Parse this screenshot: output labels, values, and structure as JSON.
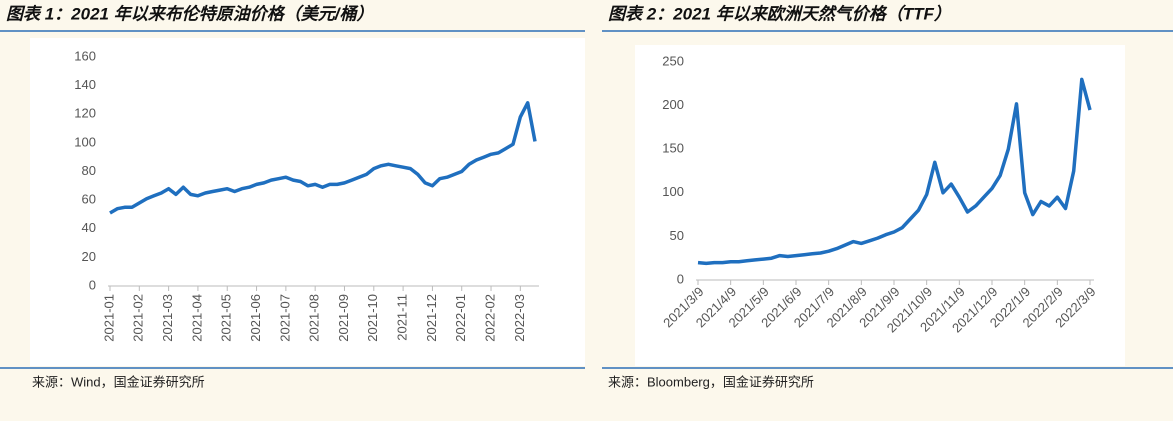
{
  "chart_data": [
    {
      "type": "line",
      "title": "图表 1：2021 年以来布伦特原油价格（美元/桶）",
      "source": "来源：Wind，国金证券研究所",
      "categories": [
        "2021-01",
        null,
        null,
        null,
        "2021-02",
        null,
        null,
        null,
        "2021-03",
        null,
        null,
        null,
        "2021-04",
        null,
        null,
        null,
        "2021-05",
        null,
        null,
        null,
        "2021-06",
        null,
        null,
        null,
        "2021-07",
        null,
        null,
        null,
        "2021-08",
        null,
        null,
        null,
        "2021-09",
        null,
        null,
        null,
        "2021-10",
        null,
        null,
        null,
        "2021-11",
        null,
        null,
        null,
        "2021-12",
        null,
        null,
        null,
        "2022-01",
        null,
        null,
        null,
        "2022-02",
        null,
        null,
        null,
        "2022-03",
        null,
        null
      ],
      "series": [
        {
          "name": "Brent",
          "color": "#1f6fbf",
          "values": [
            51,
            54,
            55,
            55,
            58,
            61,
            63,
            65,
            68,
            64,
            69,
            64,
            63,
            65,
            66,
            67,
            68,
            66,
            68,
            69,
            71,
            72,
            74,
            75,
            76,
            74,
            73,
            70,
            71,
            69,
            71,
            71,
            72,
            74,
            76,
            78,
            82,
            84,
            85,
            84,
            83,
            82,
            78,
            72,
            70,
            75,
            76,
            78,
            80,
            85,
            88,
            90,
            92,
            93,
            96,
            99,
            118,
            128,
            101
          ]
        }
      ],
      "ylim": [
        0,
        160
      ],
      "yticks": [
        0,
        20,
        40,
        60,
        80,
        100,
        120,
        140,
        160
      ]
    },
    {
      "type": "line",
      "title": "图表 2：2021 年以来欧洲天然气价格（TTF）",
      "source": "来源：Bloomberg，国金证券研究所",
      "categories": [
        "2021/3/9",
        null,
        null,
        null,
        "2021/4/9",
        null,
        null,
        null,
        "2021/5/9",
        null,
        null,
        null,
        "2021/6/9",
        null,
        null,
        null,
        "2021/7/9",
        null,
        null,
        null,
        "2021/8/9",
        null,
        null,
        null,
        "2021/9/9",
        null,
        null,
        null,
        "2021/10/9",
        null,
        null,
        null,
        "2021/11/9",
        null,
        null,
        null,
        "2021/12/9",
        null,
        null,
        null,
        "2022/1/9",
        null,
        null,
        null,
        "2022/2/9",
        null,
        null,
        null,
        "2022/3/9"
      ],
      "series": [
        {
          "name": "TTF",
          "color": "#1f6fbf",
          "values": [
            20,
            19,
            20,
            20,
            21,
            21,
            22,
            23,
            24,
            25,
            28,
            27,
            28,
            29,
            30,
            31,
            33,
            36,
            40,
            44,
            42,
            45,
            48,
            52,
            55,
            60,
            70,
            80,
            98,
            135,
            100,
            110,
            95,
            78,
            85,
            95,
            105,
            120,
            150,
            202,
            100,
            75,
            90,
            85,
            95,
            82,
            125,
            230,
            195
          ]
        }
      ],
      "ylim": [
        0,
        250
      ],
      "yticks": [
        0,
        50,
        100,
        150,
        200,
        250
      ]
    }
  ]
}
